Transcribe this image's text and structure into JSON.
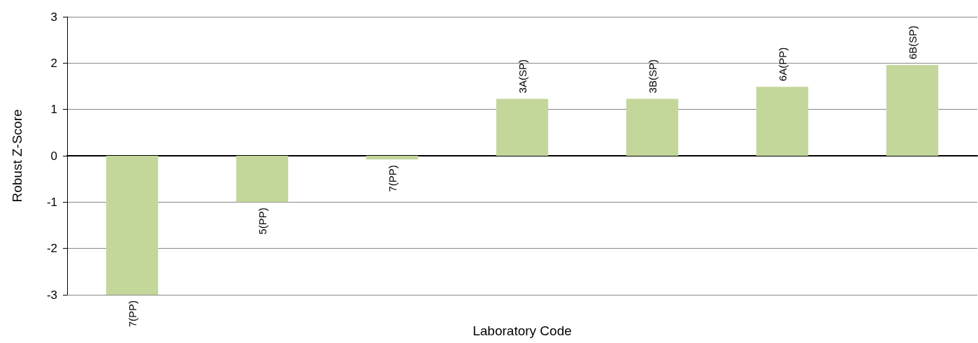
{
  "chart_data": {
    "type": "bar",
    "xlabel": "Laboratory Code",
    "ylabel": "Robust Z-Score",
    "categories": [
      "7(PP)",
      "5(PP)",
      "7(PP)",
      "3A(SP)",
      "3B(SP)",
      "6A(PP)",
      "6B(SP)"
    ],
    "values": [
      -3.0,
      -1.0,
      -0.08,
      1.23,
      1.23,
      1.49,
      1.96
    ],
    "color": "#c4d79b",
    "ylim": [
      -3,
      3
    ],
    "yticks": [
      -3,
      -2,
      -1,
      0,
      1,
      2,
      3
    ],
    "grid": "y"
  }
}
